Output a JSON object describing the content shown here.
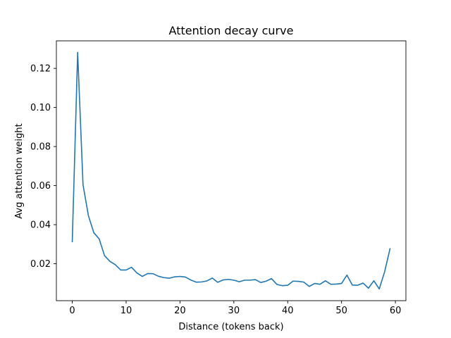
{
  "chart_data": {
    "type": "line",
    "title": "Attention decay curve",
    "xlabel": "Distance (tokens back)",
    "ylabel": "Avg attention weight",
    "xlim": [
      -2.95,
      61.95
    ],
    "ylim": [
      0.0011,
      0.1341
    ],
    "xticks": [
      0,
      10,
      20,
      30,
      40,
      50,
      60
    ],
    "yticks": [
      0.02,
      0.04,
      0.06,
      0.08,
      0.1,
      0.12
    ],
    "ytick_labels": [
      "0.02",
      "0.04",
      "0.06",
      "0.08",
      "0.10",
      "0.12"
    ],
    "grid": false,
    "series_color": "#1f77b4",
    "x": [
      0,
      1,
      2,
      3,
      4,
      5,
      6,
      7,
      8,
      9,
      10,
      11,
      12,
      13,
      14,
      15,
      16,
      17,
      18,
      19,
      20,
      21,
      22,
      23,
      24,
      25,
      26,
      27,
      28,
      29,
      30,
      31,
      32,
      33,
      34,
      35,
      36,
      37,
      38,
      39,
      40,
      41,
      42,
      43,
      44,
      45,
      46,
      47,
      48,
      49,
      50,
      51,
      52,
      53,
      54,
      55,
      56,
      57,
      58,
      59
    ],
    "y": [
      0.0313,
      0.1282,
      0.0604,
      0.0446,
      0.0359,
      0.0327,
      0.0241,
      0.0212,
      0.0195,
      0.0168,
      0.0168,
      0.0182,
      0.0153,
      0.0135,
      0.015,
      0.0149,
      0.0136,
      0.0129,
      0.0126,
      0.0133,
      0.0135,
      0.0132,
      0.0117,
      0.0106,
      0.0107,
      0.0112,
      0.0127,
      0.0105,
      0.0117,
      0.012,
      0.0116,
      0.0108,
      0.0116,
      0.0116,
      0.0119,
      0.0104,
      0.0111,
      0.0124,
      0.0094,
      0.0088,
      0.009,
      0.0111,
      0.011,
      0.0106,
      0.0084,
      0.0099,
      0.0095,
      0.0113,
      0.0095,
      0.0096,
      0.0099,
      0.0142,
      0.0091,
      0.009,
      0.0101,
      0.0075,
      0.0113,
      0.0071,
      0.0159,
      0.0277
    ]
  }
}
